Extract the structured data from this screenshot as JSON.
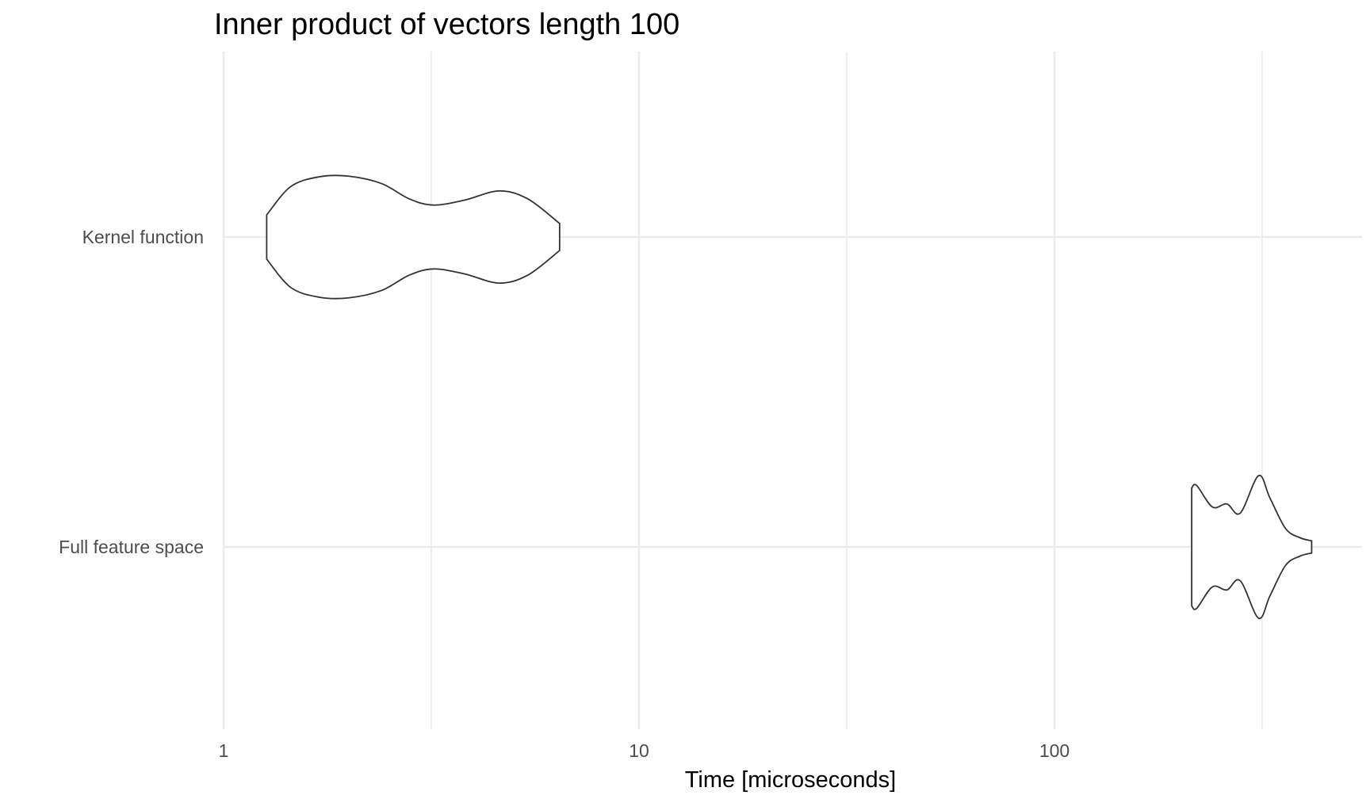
{
  "chart_data": {
    "type": "violin",
    "title": "Inner product of vectors length 100",
    "xlabel": "Time [microseconds]",
    "ylabel": "",
    "x_scale": "log10",
    "xlim": [
      0.97,
      466
    ],
    "x_ticks": [
      {
        "value": 1,
        "label": "1"
      },
      {
        "value": 10,
        "label": "10"
      },
      {
        "value": 100,
        "label": "100"
      }
    ],
    "x_minor_ticks": [
      3.16,
      31.6,
      316
    ],
    "categories": [
      "Kernel function",
      "Full feature space"
    ],
    "grid": true,
    "legend": "none",
    "series": [
      {
        "category": "Kernel function",
        "range": [
          1.27,
          6.44
        ],
        "density_profile": [
          {
            "x": 1.27,
            "width": 0.36
          },
          {
            "x": 1.45,
            "width": 0.82
          },
          {
            "x": 1.7,
            "width": 0.98
          },
          {
            "x": 2.0,
            "width": 0.99
          },
          {
            "x": 2.4,
            "width": 0.87
          },
          {
            "x": 2.8,
            "width": 0.62
          },
          {
            "x": 3.2,
            "width": 0.52
          },
          {
            "x": 3.8,
            "width": 0.6
          },
          {
            "x": 4.6,
            "width": 0.75
          },
          {
            "x": 5.4,
            "width": 0.62
          },
          {
            "x": 6.44,
            "width": 0.22
          }
        ]
      },
      {
        "category": "Full feature space",
        "range": [
          214,
          416
        ],
        "density_profile": [
          {
            "x": 214,
            "width": 0.96
          },
          {
            "x": 220,
            "width": 1.0
          },
          {
            "x": 240,
            "width": 0.65
          },
          {
            "x": 260,
            "width": 0.7
          },
          {
            "x": 280,
            "width": 0.55
          },
          {
            "x": 310,
            "width": 1.16
          },
          {
            "x": 330,
            "width": 0.8
          },
          {
            "x": 360,
            "width": 0.3
          },
          {
            "x": 390,
            "width": 0.15
          },
          {
            "x": 416,
            "width": 0.1
          }
        ]
      }
    ]
  }
}
